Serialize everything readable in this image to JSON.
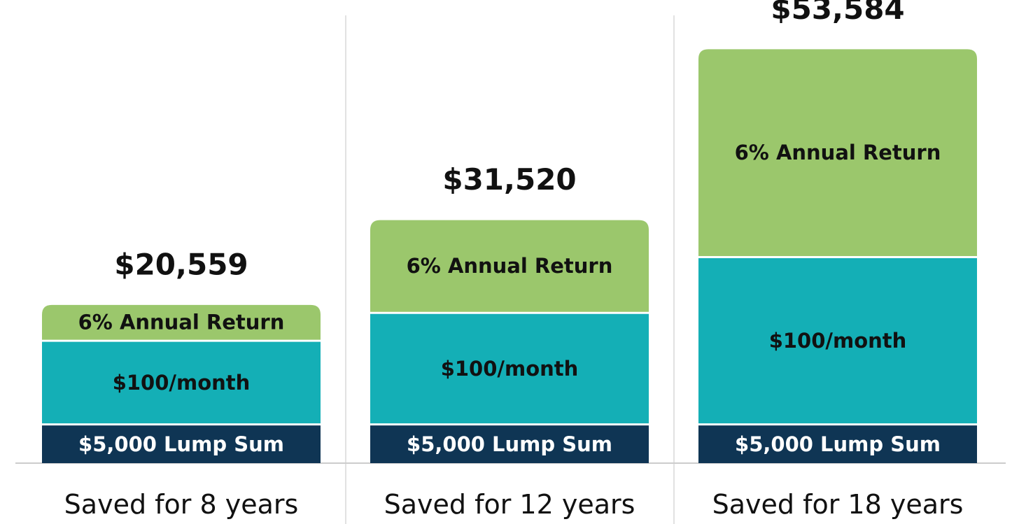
{
  "chart_data": {
    "type": "bar",
    "stacked": true,
    "title": "",
    "xlabel": "",
    "ylabel": "",
    "ylim": [
      0,
      57000
    ],
    "grid": false,
    "legend": "none",
    "categories": [
      "Saved for 8 years",
      "Saved for 12 years",
      "Saved for 18 years"
    ],
    "totals": [
      "$20,559",
      "$31,520",
      "$53,584"
    ],
    "total_values": [
      20559,
      31520,
      53584
    ],
    "series": [
      {
        "name": "$5,000 Lump Sum",
        "values": [
          5000,
          5000,
          5000
        ],
        "color": "#0f3554",
        "text_color": "#ffffff"
      },
      {
        "name": "$100/month",
        "values": [
          10800,
          14400,
          21600
        ],
        "color": "#14afb6",
        "text_color": "#111111"
      },
      {
        "name": "6% Annual Return",
        "values": [
          4759,
          12120,
          26984
        ],
        "color": "#9bc76c",
        "text_color": "#111111"
      }
    ]
  }
}
